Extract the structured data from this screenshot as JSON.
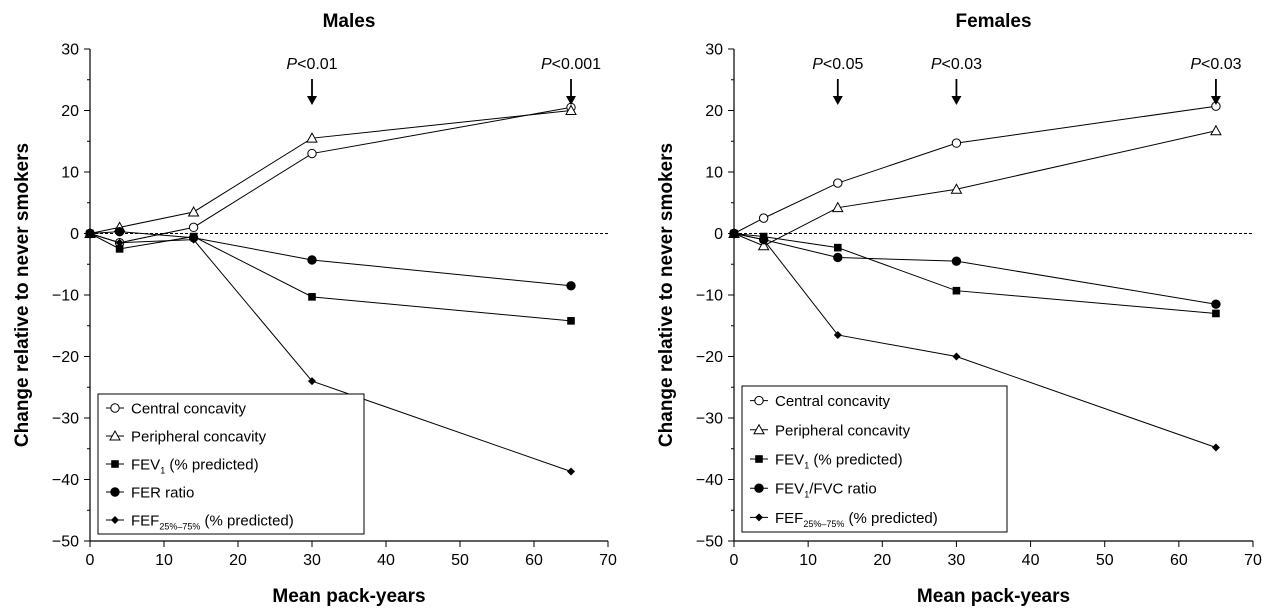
{
  "chart_data": [
    {
      "type": "line",
      "title": "Males",
      "xlabel": "Mean pack-years",
      "ylabel": "Change relative to never smokers",
      "xlim": [
        0,
        70
      ],
      "ylim": [
        -50,
        30
      ],
      "xticks": [
        0,
        10,
        20,
        30,
        40,
        50,
        60,
        70
      ],
      "yticks": [
        30,
        20,
        10,
        0,
        -10,
        -20,
        -30,
        -40,
        -50
      ],
      "x": [
        0,
        4,
        14,
        30,
        65
      ],
      "series": [
        {
          "name": "Central concavity",
          "marker": "open-circle",
          "values": [
            0,
            -1.5,
            1,
            13,
            20.5
          ]
        },
        {
          "name": "Peripheral concavity",
          "marker": "open-triangle",
          "values": [
            0,
            1,
            3.5,
            15.5,
            20
          ]
        },
        {
          "name": "FEV",
          "name_sub": "1",
          "name_suffix": " (% predicted)",
          "marker": "square",
          "values": [
            0,
            -2.5,
            -0.5,
            -10.3,
            -14.2
          ]
        },
        {
          "name": "FER ratio",
          "marker": "circle",
          "values": [
            0,
            0.3,
            -0.7,
            -4.3,
            -8.5
          ]
        },
        {
          "name": "FEF",
          "name_sub": "25%–75%",
          "name_suffix": " (% predicted)",
          "marker": "diamond",
          "values": [
            0,
            -1.5,
            -1,
            -24,
            -38.7
          ]
        }
      ],
      "annotations": [
        {
          "x": 30,
          "italic": "P",
          "text": "<0.01"
        },
        {
          "x": 65,
          "italic": "P",
          "text": "<0.001"
        }
      ],
      "reference_line_y": 0,
      "legend": "bottom-left",
      "grid": false
    },
    {
      "type": "line",
      "title": "Females",
      "xlabel": "Mean pack-years",
      "ylabel": "Change relative to never smokers",
      "xlim": [
        0,
        70
      ],
      "ylim": [
        -50,
        30
      ],
      "xticks": [
        0,
        10,
        20,
        30,
        40,
        50,
        60,
        70
      ],
      "yticks": [
        30,
        20,
        10,
        0,
        -10,
        -20,
        -30,
        -40,
        -50
      ],
      "x": [
        0,
        4,
        14,
        30,
        65
      ],
      "series": [
        {
          "name": "Central concavity",
          "marker": "open-circle",
          "values": [
            0,
            2.5,
            8.2,
            14.7,
            20.7
          ]
        },
        {
          "name": "Peripheral concavity",
          "marker": "open-triangle",
          "values": [
            0,
            -2,
            4.2,
            7.2,
            16.7
          ]
        },
        {
          "name": "FEV",
          "name_sub": "1",
          "name_suffix": " (% predicted)",
          "marker": "square",
          "values": [
            0,
            -0.5,
            -2.3,
            -9.3,
            -13
          ]
        },
        {
          "name": "FEV",
          "name_sub": "1",
          "name_suffix": "/FVC ratio",
          "marker": "circle",
          "values": [
            0,
            -1,
            -3.9,
            -4.5,
            -11.5
          ]
        },
        {
          "name": "FEF",
          "name_sub": "25%–75%",
          "name_suffix": " (% predicted)",
          "marker": "diamond",
          "values": [
            0,
            -1,
            -16.5,
            -20,
            -34.8
          ]
        }
      ],
      "annotations": [
        {
          "x": 14,
          "italic": "P",
          "text": "<0.05"
        },
        {
          "x": 30,
          "italic": "P",
          "text": "<0.03"
        },
        {
          "x": 65,
          "italic": "P",
          "text": "<0.03"
        }
      ],
      "reference_line_y": 0,
      "legend": "bottom-left",
      "grid": false
    }
  ]
}
